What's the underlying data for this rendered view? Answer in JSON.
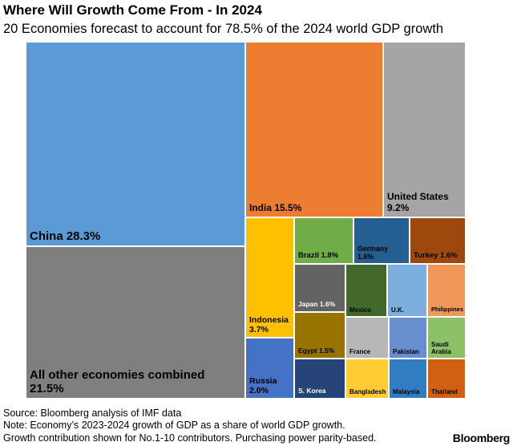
{
  "header": {
    "title": "Where Will Growth Come From - In 2024",
    "subtitle": "20 Economies forecast to account for 78.5% of the 2024 world GDP growth"
  },
  "chart_data": {
    "type": "treemap",
    "title": "Where Will Growth Come From - In 2024",
    "subtitle": "20 Economies forecast to account for 78.5% of the 2024 world GDP growth",
    "unit": "%",
    "items": [
      {
        "name": "China",
        "value": 28.3,
        "label": "China 28.3%",
        "color": "#5b9bd5"
      },
      {
        "name": "All other economies combined",
        "value": 21.5,
        "label": "All other economies combined\n21.5%",
        "color": "#7f7f7f"
      },
      {
        "name": "India",
        "value": 15.5,
        "label": "India 15.5%",
        "color": "#ed7d31"
      },
      {
        "name": "United States",
        "value": 9.2,
        "label": "United States\n9.2%",
        "color": "#a5a5a5"
      },
      {
        "name": "Indonesia",
        "value": 3.7,
        "label": "Indonesia\n3.7%",
        "color": "#ffc000"
      },
      {
        "name": "Russia",
        "value": 2.0,
        "label": "Russia\n2.0%",
        "color": "#4472c4"
      },
      {
        "name": "Brazil",
        "value": 1.8,
        "label": "Brazil 1.8%",
        "color": "#70ad47"
      },
      {
        "name": "Germany",
        "value": 1.6,
        "label": "Germany\n1.6%",
        "color": "#255e91"
      },
      {
        "name": "Turkey",
        "value": 1.6,
        "label": "Turkey 1.6%",
        "color": "#9e480e"
      },
      {
        "name": "Japan",
        "value": 1.6,
        "label": "Japan 1.6%",
        "color": "#636363"
      },
      {
        "name": "Egypt",
        "value": 1.5,
        "label": "Egypt 1.5%",
        "color": "#997300"
      },
      {
        "name": "S. Korea",
        "value": null,
        "label": "S. Korea",
        "color": "#264478"
      },
      {
        "name": "Mexico",
        "value": null,
        "label": "Mexico",
        "color": "#43682b"
      },
      {
        "name": "U.K.",
        "value": null,
        "label": "U.K.",
        "color": "#7cafdd"
      },
      {
        "name": "Philippines",
        "value": null,
        "label": "Philippines",
        "color": "#f1975a"
      },
      {
        "name": "France",
        "value": null,
        "label": "France",
        "color": "#b7b7b7"
      },
      {
        "name": "Pakistan",
        "value": null,
        "label": "Pakistan",
        "color": "#698ed0"
      },
      {
        "name": "Saudi Arabia",
        "value": null,
        "label": "Saudi\nArabia",
        "color": "#8cc168"
      },
      {
        "name": "Bangladesh",
        "value": null,
        "label": "Bangladesh",
        "color": "#ffcd33"
      },
      {
        "name": "Malaysia",
        "value": null,
        "label": "Malaysia",
        "color": "#327dc2"
      },
      {
        "name": "Thailand",
        "value": null,
        "label": "Thailand",
        "color": "#d26012"
      }
    ]
  },
  "footer": {
    "source": "Source: Bloomberg analysis of IMF data",
    "note_line1": "Note: Economy’s 2023-2024 growth of GDP as a share of world GDP growth.",
    "note_line2": "Growth contribution shown for No.1-10 contributors. Purchasing power parity-based.",
    "brand": "Bloomberg"
  }
}
